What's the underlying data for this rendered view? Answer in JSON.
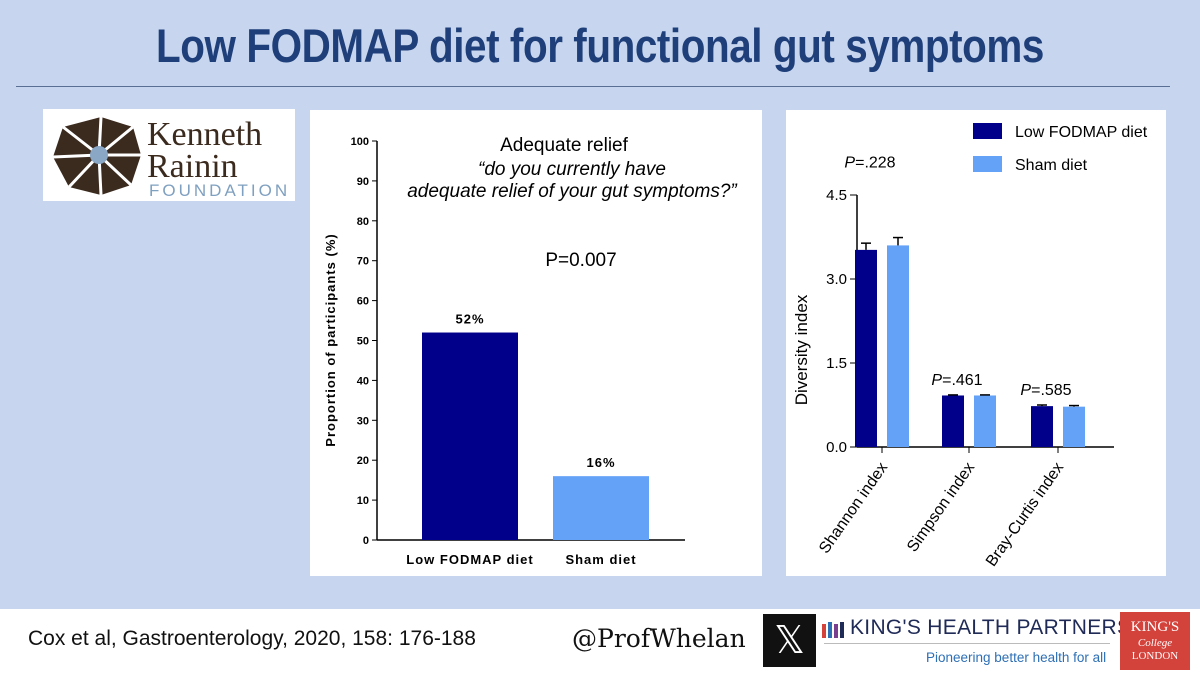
{
  "title": "Low FODMAP diet for functional gut symptoms",
  "logo": {
    "line1": "Kenneth",
    "line2": "Rainin",
    "line3": "FOUNDATION"
  },
  "footer": {
    "citation": "Cox et al, Gastroenterology, 2020, 158: 176-188",
    "handle": "@ProfWhelan",
    "x_logo": "𝕏",
    "partner_name": "KING'S HEALTH PARTNERS",
    "partner_tagline": "Pioneering better health for all",
    "college_line1": "KING'S",
    "college_line2": "College",
    "college_line3": "LONDON"
  },
  "colors": {
    "dark": "#00008b",
    "light": "#63a2f6",
    "title": "#1f3f7a",
    "background": "#c7d6ee"
  },
  "chart_data": [
    {
      "type": "bar",
      "title": "Adequate relief",
      "subtitle": "“do you currently have adequate relief of your gut symptoms?”",
      "annotation": "P=0.007",
      "ylabel": "Proportion of participants (%)",
      "ylim": [
        0,
        100
      ],
      "yticks": [
        0,
        10,
        20,
        30,
        40,
        50,
        60,
        70,
        80,
        90,
        100
      ],
      "categories": [
        "Low FODMAP diet",
        "Sham diet"
      ],
      "values": [
        52,
        16
      ],
      "value_labels": [
        "52%",
        "16%"
      ]
    },
    {
      "type": "bar",
      "ylabel": "Diversity index",
      "ylim": [
        0,
        4.5
      ],
      "yticks": [
        "0.0",
        "1.5",
        "3.0",
        "4.5"
      ],
      "categories": [
        "Shannon index",
        "Simpson index",
        "Bray-Curtis index"
      ],
      "p_values": [
        "=.228",
        "=.461",
        "=.585"
      ],
      "legend_position": "top",
      "series": [
        {
          "name": "Low FODMAP diet",
          "values": [
            3.52,
            0.92,
            0.73
          ],
          "errors": [
            0.12,
            0.01,
            0.02
          ]
        },
        {
          "name": "Sham diet",
          "values": [
            3.6,
            0.92,
            0.72
          ],
          "errors": [
            0.14,
            0.01,
            0.02
          ]
        }
      ]
    }
  ]
}
